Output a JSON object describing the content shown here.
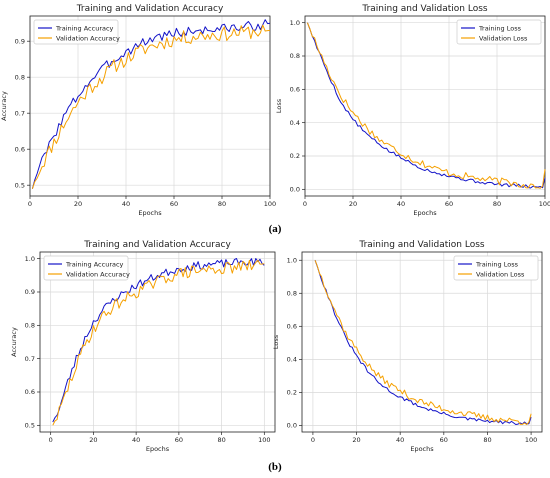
{
  "captions": {
    "a": "(a)",
    "b": "(b)"
  },
  "colors": {
    "training": "#1414c8",
    "validation": "#f5a000",
    "grid": "#d9d9d9",
    "axis": "#222222"
  },
  "chart_data": [
    {
      "id": "a-accuracy",
      "type": "line",
      "title": "Training and Validation Accuracy",
      "xlabel": "Epochs",
      "ylabel": "Accuracy",
      "xlim": [
        0,
        100
      ],
      "ylim": [
        0.47,
        0.97
      ],
      "xticks": [
        0,
        20,
        40,
        60,
        80,
        100
      ],
      "yticks": [
        0.5,
        0.6,
        0.7,
        0.8,
        0.9
      ],
      "legend": "upper-left",
      "grid": true,
      "series": [
        {
          "name": "Training Accuracy",
          "color": "#1414c8",
          "anchors": [
            [
              1,
              0.49
            ],
            [
              3,
              0.54
            ],
            [
              6,
              0.58
            ],
            [
              10,
              0.64
            ],
            [
              15,
              0.7
            ],
            [
              20,
              0.75
            ],
            [
              25,
              0.79
            ],
            [
              30,
              0.82
            ],
            [
              35,
              0.85
            ],
            [
              40,
              0.87
            ],
            [
              45,
              0.89
            ],
            [
              50,
              0.905
            ],
            [
              55,
              0.915
            ],
            [
              60,
              0.922
            ],
            [
              70,
              0.93
            ],
            [
              80,
              0.935
            ],
            [
              90,
              0.94
            ],
            [
              100,
              0.95
            ]
          ],
          "noise": 0.014,
          "seed": 3
        },
        {
          "name": "Validation Accuracy",
          "color": "#f5a000",
          "anchors": [
            [
              1,
              0.49
            ],
            [
              3,
              0.53
            ],
            [
              6,
              0.57
            ],
            [
              10,
              0.62
            ],
            [
              15,
              0.68
            ],
            [
              20,
              0.73
            ],
            [
              25,
              0.77
            ],
            [
              30,
              0.8
            ],
            [
              35,
              0.83
            ],
            [
              40,
              0.85
            ],
            [
              45,
              0.87
            ],
            [
              50,
              0.885
            ],
            [
              55,
              0.895
            ],
            [
              60,
              0.905
            ],
            [
              70,
              0.915
            ],
            [
              80,
              0.92
            ],
            [
              90,
              0.925
            ],
            [
              100,
              0.93
            ]
          ],
          "noise": 0.02,
          "seed": 11
        }
      ]
    },
    {
      "id": "a-loss",
      "type": "line",
      "title": "Training and Validation Loss",
      "xlabel": "Epochs",
      "ylabel": "Loss",
      "xlim": [
        0,
        100
      ],
      "ylim": [
        -0.04,
        1.04
      ],
      "xticks": [
        0,
        20,
        40,
        60,
        80,
        100
      ],
      "yticks": [
        0.0,
        0.2,
        0.4,
        0.6,
        0.8,
        1.0
      ],
      "legend": "upper-right",
      "grid": true,
      "series": [
        {
          "name": "Training Loss",
          "color": "#1414c8",
          "anchors": [
            [
              1,
              1.0
            ],
            [
              5,
              0.85
            ],
            [
              10,
              0.68
            ],
            [
              15,
              0.52
            ],
            [
              20,
              0.42
            ],
            [
              25,
              0.34
            ],
            [
              30,
              0.28
            ],
            [
              35,
              0.23
            ],
            [
              40,
              0.19
            ],
            [
              45,
              0.15
            ],
            [
              50,
              0.12
            ],
            [
              55,
              0.1
            ],
            [
              60,
              0.08
            ],
            [
              70,
              0.05
            ],
            [
              80,
              0.03
            ],
            [
              90,
              0.02
            ],
            [
              99,
              0.01
            ],
            [
              100,
              0.07
            ]
          ],
          "noise": 0.01,
          "seed": 5
        },
        {
          "name": "Validation Loss",
          "color": "#f5a000",
          "anchors": [
            [
              1,
              1.0
            ],
            [
              5,
              0.86
            ],
            [
              10,
              0.7
            ],
            [
              15,
              0.56
            ],
            [
              20,
              0.46
            ],
            [
              25,
              0.38
            ],
            [
              30,
              0.31
            ],
            [
              35,
              0.26
            ],
            [
              40,
              0.22
            ],
            [
              45,
              0.18
            ],
            [
              50,
              0.15
            ],
            [
              55,
              0.12
            ],
            [
              60,
              0.1
            ],
            [
              70,
              0.07
            ],
            [
              80,
              0.05
            ],
            [
              90,
              0.03
            ],
            [
              99,
              0.02
            ],
            [
              100,
              0.12
            ]
          ],
          "noise": 0.022,
          "seed": 17
        }
      ]
    },
    {
      "id": "b-accuracy",
      "type": "line",
      "title": "Training and Validation Accuracy",
      "xlabel": "Epochs",
      "ylabel": "Accuracy",
      "xlim": [
        -5,
        105
      ],
      "ylim": [
        0.48,
        1.02
      ],
      "xticks": [
        0,
        20,
        40,
        60,
        80,
        100
      ],
      "yticks": [
        0.5,
        0.6,
        0.7,
        0.8,
        0.9,
        1.0
      ],
      "legend": "upper-left",
      "grid": true,
      "series": [
        {
          "name": "Training Accuracy",
          "color": "#1414c8",
          "anchors": [
            [
              1,
              0.51
            ],
            [
              4,
              0.55
            ],
            [
              8,
              0.63
            ],
            [
              12,
              0.7
            ],
            [
              16,
              0.76
            ],
            [
              20,
              0.81
            ],
            [
              25,
              0.85
            ],
            [
              30,
              0.88
            ],
            [
              35,
              0.9
            ],
            [
              40,
              0.92
            ],
            [
              45,
              0.935
            ],
            [
              50,
              0.95
            ],
            [
              55,
              0.96
            ],
            [
              60,
              0.97
            ],
            [
              70,
              0.98
            ],
            [
              80,
              0.985
            ],
            [
              90,
              0.99
            ],
            [
              98,
              0.99
            ],
            [
              100,
              0.98
            ]
          ],
          "noise": 0.012,
          "seed": 23
        },
        {
          "name": "Validation Accuracy",
          "color": "#f5a000",
          "anchors": [
            [
              1,
              0.5
            ],
            [
              4,
              0.54
            ],
            [
              8,
              0.61
            ],
            [
              12,
              0.68
            ],
            [
              16,
              0.74
            ],
            [
              20,
              0.79
            ],
            [
              25,
              0.83
            ],
            [
              30,
              0.86
            ],
            [
              35,
              0.88
            ],
            [
              40,
              0.9
            ],
            [
              45,
              0.915
            ],
            [
              50,
              0.93
            ],
            [
              55,
              0.945
            ],
            [
              60,
              0.955
            ],
            [
              70,
              0.965
            ],
            [
              80,
              0.97
            ],
            [
              90,
              0.975
            ],
            [
              100,
              0.985
            ]
          ],
          "noise": 0.018,
          "seed": 29
        }
      ]
    },
    {
      "id": "b-loss",
      "type": "line",
      "title": "Training and Validation Loss",
      "xlabel": "Epochs",
      "ylabel": "Loss",
      "xlim": [
        -5,
        105
      ],
      "ylim": [
        -0.04,
        1.05
      ],
      "xticks": [
        0,
        20,
        40,
        60,
        80,
        100
      ],
      "yticks": [
        0.0,
        0.2,
        0.4,
        0.6,
        0.8,
        1.0
      ],
      "legend": "upper-right",
      "grid": true,
      "series": [
        {
          "name": "Training Loss",
          "color": "#1414c8",
          "anchors": [
            [
              1,
              1.0
            ],
            [
              5,
              0.85
            ],
            [
              10,
              0.68
            ],
            [
              15,
              0.53
            ],
            [
              20,
              0.42
            ],
            [
              25,
              0.33
            ],
            [
              30,
              0.26
            ],
            [
              35,
              0.21
            ],
            [
              40,
              0.17
            ],
            [
              45,
              0.14
            ],
            [
              50,
              0.11
            ],
            [
              55,
              0.09
            ],
            [
              60,
              0.07
            ],
            [
              70,
              0.04
            ],
            [
              80,
              0.025
            ],
            [
              90,
              0.015
            ],
            [
              99,
              0.01
            ],
            [
              100,
              0.05
            ]
          ],
          "noise": 0.01,
          "seed": 31
        },
        {
          "name": "Validation Loss",
          "color": "#f5a000",
          "anchors": [
            [
              1,
              1.0
            ],
            [
              5,
              0.86
            ],
            [
              10,
              0.7
            ],
            [
              15,
              0.56
            ],
            [
              20,
              0.46
            ],
            [
              25,
              0.37
            ],
            [
              30,
              0.3
            ],
            [
              35,
              0.25
            ],
            [
              40,
              0.21
            ],
            [
              45,
              0.17
            ],
            [
              50,
              0.14
            ],
            [
              55,
              0.12
            ],
            [
              60,
              0.1
            ],
            [
              70,
              0.07
            ],
            [
              80,
              0.045
            ],
            [
              90,
              0.03
            ],
            [
              99,
              0.02
            ],
            [
              100,
              0.07
            ]
          ],
          "noise": 0.02,
          "seed": 37
        }
      ]
    }
  ]
}
